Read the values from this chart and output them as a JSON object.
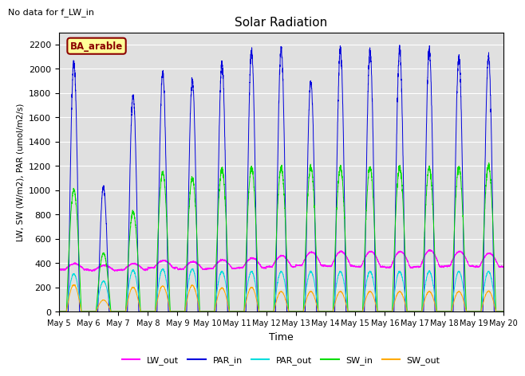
{
  "title": "Solar Radiation",
  "no_data_text": "No data for f_LW_in",
  "site_label": "BA_arable",
  "ylabel": "LW, SW (W/m2), PAR (umol/m2/s)",
  "xlabel": "Time",
  "ylim": [
    0,
    2300
  ],
  "yticks": [
    0,
    200,
    400,
    600,
    800,
    1000,
    1200,
    1400,
    1600,
    1800,
    2000,
    2200
  ],
  "colors": {
    "LW_out": "#ff00ff",
    "PAR_in": "#0000dd",
    "PAR_out": "#00dddd",
    "SW_in": "#00dd00",
    "SW_out": "#ffaa00"
  },
  "start_day": 5,
  "end_day": 20,
  "steps_per_day": 288,
  "background_color": "#e0e0e0",
  "par_in_peaks": [
    2050,
    1025,
    1780,
    1960,
    1900,
    2050,
    2150,
    2160,
    1900,
    2150,
    2150,
    2150,
    2150,
    2100,
    2100
  ],
  "sw_in_peaks": [
    1000,
    480,
    820,
    1150,
    1100,
    1175,
    1185,
    1185,
    1190,
    1185,
    1185,
    1185,
    1185,
    1190,
    1200
  ],
  "par_out_peaks": [
    310,
    250,
    340,
    350,
    350,
    330,
    330,
    330,
    330,
    330,
    330,
    330,
    330,
    330,
    330
  ],
  "sw_out_peaks": [
    220,
    95,
    200,
    210,
    215,
    195,
    200,
    165,
    165,
    165,
    165,
    165,
    165,
    165,
    168
  ],
  "lw_out_base": [
    345,
    340,
    345,
    360,
    350,
    355,
    360,
    370,
    380,
    375,
    370,
    365,
    370,
    375,
    370
  ],
  "lw_out_bump": [
    50,
    40,
    50,
    60,
    60,
    70,
    80,
    90,
    110,
    120,
    125,
    130,
    135,
    120,
    110
  ]
}
